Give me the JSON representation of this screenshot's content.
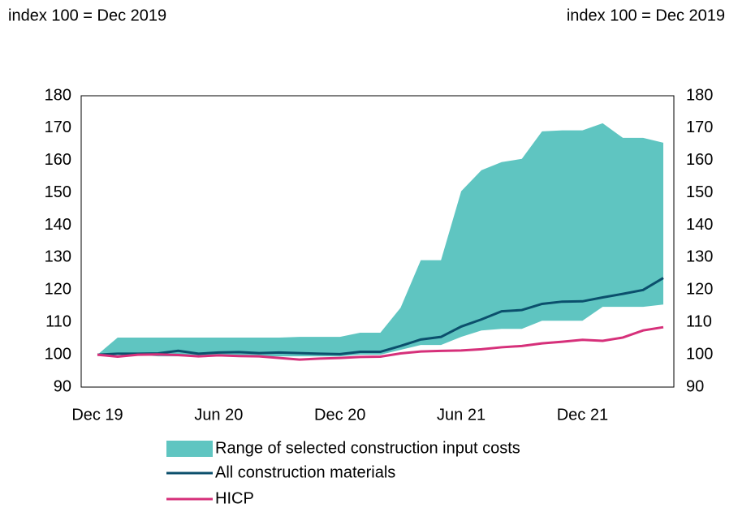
{
  "chart_data": {
    "type": "line",
    "y_label": "index 100 = Dec 2019",
    "y2_label": "index 100 = Dec 2019",
    "categories": [
      "Dec 19",
      null,
      null,
      null,
      null,
      null,
      "Jun 20",
      null,
      null,
      null,
      null,
      null,
      "Dec 20",
      null,
      null,
      null,
      null,
      null,
      "Jun 21",
      null,
      null,
      null,
      null,
      null,
      "Dec 21",
      null,
      null,
      null,
      null
    ],
    "range": {
      "name": "Range of selected construction input costs",
      "color": "#5fc5c1",
      "upper": [
        100,
        105.3,
        105.3,
        105.3,
        105.3,
        105.3,
        105.3,
        105.3,
        105.3,
        105.3,
        105.5,
        105.5,
        105.5,
        106.8,
        106.8,
        114.5,
        129.2,
        129.2,
        150.5,
        157,
        159.5,
        160.5,
        169,
        169.3,
        169.3,
        171.5,
        167,
        167,
        165.5
      ],
      "lower": [
        100,
        100.5,
        100,
        99.5,
        99.5,
        99.5,
        99.5,
        99.5,
        99.5,
        99.5,
        99.5,
        99.5,
        99.5,
        100,
        100,
        101.5,
        103,
        103,
        105.5,
        107.5,
        108,
        108,
        110.5,
        110.5,
        110.5,
        114.8,
        114.8,
        114.8,
        115.5
      ]
    },
    "series": [
      {
        "name": "All construction materials",
        "color": "#0b4f6c",
        "values": [
          100,
          100.3,
          100.3,
          100.4,
          101.2,
          100.3,
          100.7,
          100.8,
          100.5,
          100.7,
          100.5,
          100.3,
          100.2,
          100.9,
          100.9,
          102.7,
          104.7,
          105.5,
          108.7,
          110.9,
          113.4,
          113.8,
          115.7,
          116.4,
          116.5,
          117.7,
          118.8,
          120,
          123.7
        ]
      },
      {
        "name": "HICP",
        "color": "#d6307a",
        "values": [
          100,
          99.4,
          100,
          100.1,
          99.9,
          99.5,
          99.8,
          99.6,
          99.5,
          99,
          98.5,
          98.8,
          99,
          99.3,
          99.4,
          100.4,
          101,
          101.2,
          101.3,
          101.7,
          102.3,
          102.7,
          103.5,
          104,
          104.6,
          104.3,
          105.3,
          107.5,
          108.5
        ]
      }
    ],
    "ylim": [
      90,
      180
    ],
    "yticks": [
      90,
      100,
      110,
      120,
      130,
      140,
      150,
      160,
      170,
      180
    ],
    "y2lim": [
      90,
      180
    ],
    "y2ticks": [
      90,
      100,
      110,
      120,
      130,
      140,
      150,
      160,
      170,
      180
    ],
    "grid": false
  }
}
